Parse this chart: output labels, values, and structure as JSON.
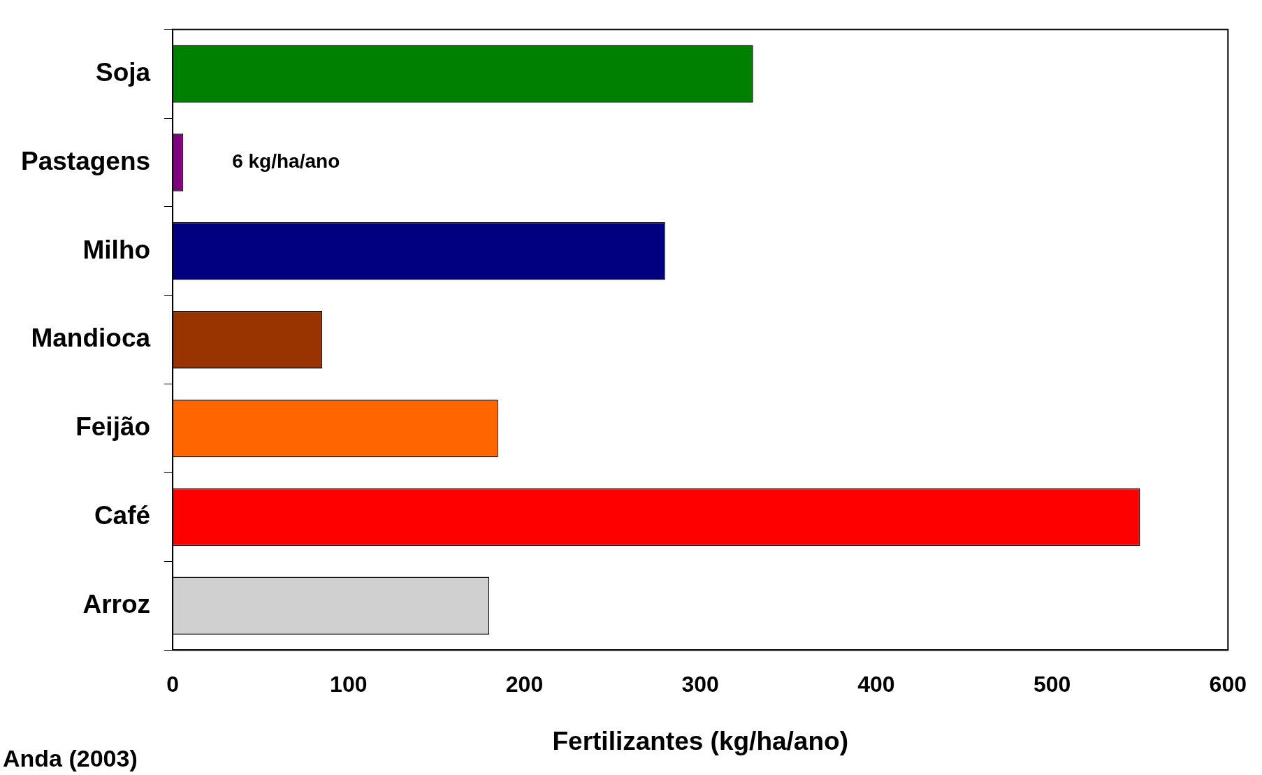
{
  "chart_data": {
    "type": "bar",
    "orientation": "horizontal",
    "xlabel": "Fertilizantes (kg/ha/ano)",
    "categories": [
      "Soja",
      "Pastagens",
      "Milho",
      "Mandioca",
      "Feijão",
      "Café",
      "Arroz"
    ],
    "values": [
      330,
      6,
      280,
      85,
      185,
      550,
      180
    ],
    "colors": [
      "#008000",
      "#800080",
      "#000080",
      "#993300",
      "#ff6600",
      "#ff0000",
      "#d0d0d0"
    ],
    "value_labels": [
      null,
      "6 kg/ha/ano",
      null,
      null,
      null,
      null,
      null
    ],
    "xlim": [
      0,
      600
    ],
    "xticks": [
      0,
      100,
      200,
      300,
      400,
      500,
      600
    ],
    "annotations": [
      "Anda (2003)"
    ],
    "legend": false
  }
}
